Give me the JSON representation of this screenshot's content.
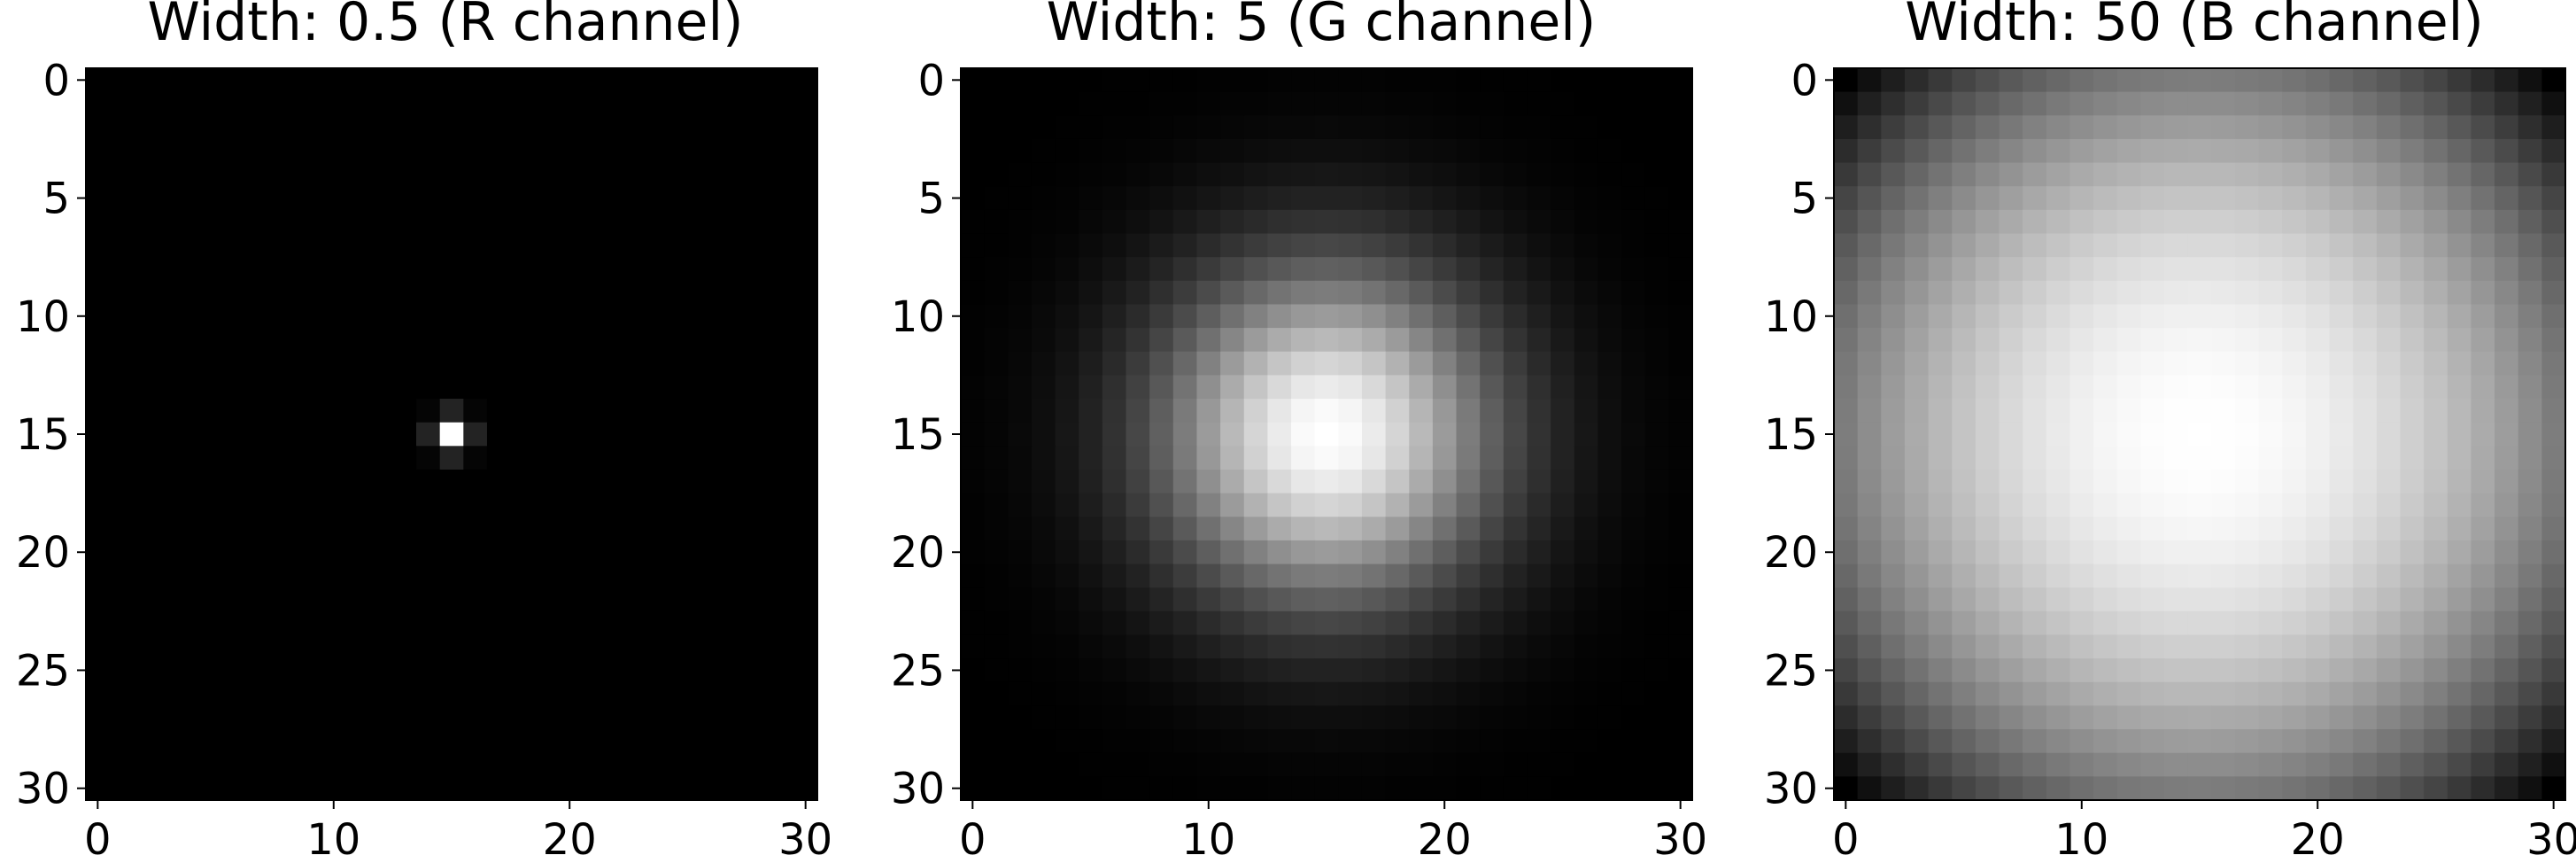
{
  "chart_data": [
    {
      "type": "heatmap",
      "title": "Width: 0.5 (R channel)",
      "gaussian_width": 0.5,
      "colormap": "gray",
      "grid_size": [
        31,
        31
      ],
      "peak_center": [
        15,
        15
      ],
      "xlim": [
        0,
        30
      ],
      "ylim": [
        30,
        0
      ],
      "xticks": [
        0,
        10,
        20,
        30
      ],
      "yticks": [
        0,
        5,
        10,
        15,
        20,
        25,
        30
      ]
    },
    {
      "type": "heatmap",
      "title": "Width: 5 (G channel)",
      "gaussian_width": 5,
      "colormap": "gray",
      "grid_size": [
        31,
        31
      ],
      "peak_center": [
        15,
        15
      ],
      "xlim": [
        0,
        30
      ],
      "ylim": [
        30,
        0
      ],
      "xticks": [
        0,
        10,
        20,
        30
      ],
      "yticks": [
        0,
        5,
        10,
        15,
        20,
        25,
        30
      ]
    },
    {
      "type": "heatmap",
      "title": "Width: 50 (B channel)",
      "gaussian_width": 50,
      "colormap": "gray",
      "grid_size": [
        31,
        31
      ],
      "peak_center": [
        15,
        15
      ],
      "xlim": [
        0,
        30
      ],
      "ylim": [
        30,
        0
      ],
      "xticks": [
        0,
        10,
        20,
        30
      ],
      "yticks": [
        0,
        5,
        10,
        15,
        20,
        25,
        30
      ]
    }
  ]
}
